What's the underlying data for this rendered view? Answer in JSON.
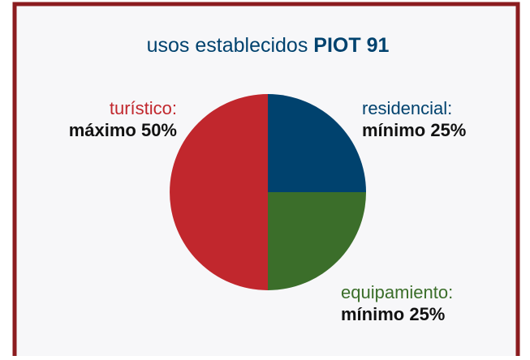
{
  "chart_data": {
    "type": "pie",
    "title": [
      "usos establecidos",
      "PIOT 91"
    ],
    "categories": [
      "residencial:",
      "equipamiento:",
      "turístico:"
    ],
    "values": [
      25,
      25,
      50
    ],
    "value_labels": [
      "mínimo 25%",
      "mínimo 25%",
      "máximo 50%"
    ],
    "colors": [
      "#00426e",
      "#3b6e2a",
      "#c1272d"
    ]
  }
}
